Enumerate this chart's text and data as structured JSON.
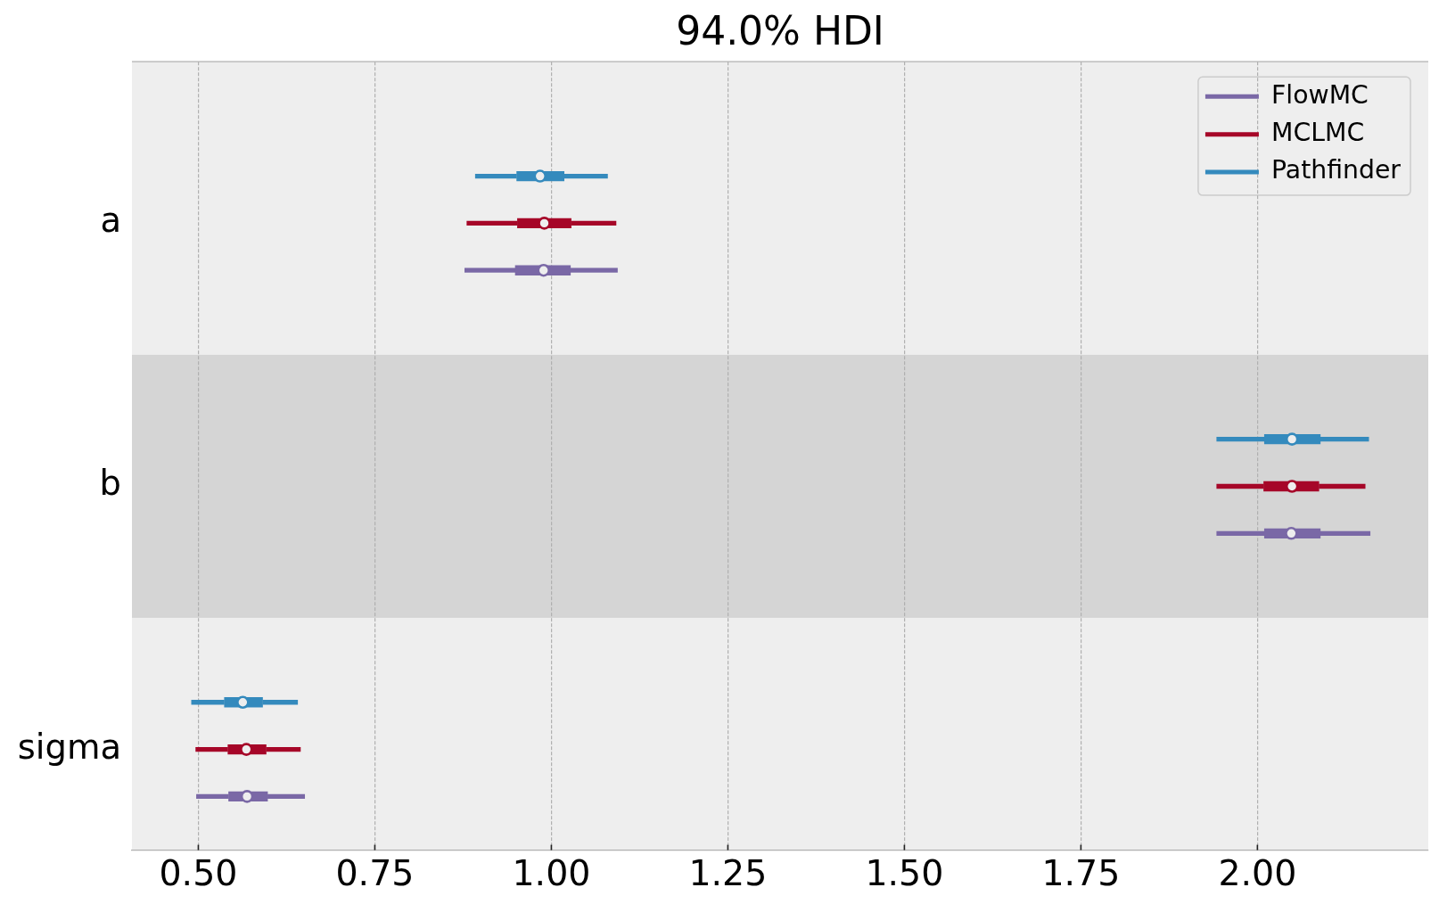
{
  "chart_data": {
    "type": "box",
    "orientation": "horizontal",
    "title": "94.0% HDI",
    "categories": [
      "a",
      "b",
      "sigma"
    ],
    "series": [
      {
        "name": "FlowMC",
        "color": "#7a68a6",
        "boxes": [
          {
            "low": 0.877,
            "q1": 0.949,
            "median": 0.989,
            "q3": 1.027,
            "high": 1.094
          },
          {
            "low": 1.942,
            "q1": 2.01,
            "median": 2.048,
            "q3": 2.089,
            "high": 2.16
          },
          {
            "low": 0.497,
            "q1": 0.543,
            "median": 0.569,
            "q3": 0.598,
            "high": 0.651
          }
        ]
      },
      {
        "name": "MCLMC",
        "color": "#a60628",
        "boxes": [
          {
            "low": 0.88,
            "q1": 0.952,
            "median": 0.99,
            "q3": 1.028,
            "high": 1.092
          },
          {
            "low": 1.942,
            "q1": 2.009,
            "median": 2.049,
            "q3": 2.087,
            "high": 2.153
          },
          {
            "low": 0.496,
            "q1": 0.542,
            "median": 0.568,
            "q3": 0.596,
            "high": 0.645
          }
        ]
      },
      {
        "name": "Pathfinder",
        "color": "#348abd",
        "boxes": [
          {
            "low": 0.892,
            "q1": 0.951,
            "median": 0.984,
            "q3": 1.018,
            "high": 1.08
          },
          {
            "low": 1.942,
            "q1": 2.01,
            "median": 2.049,
            "q3": 2.089,
            "high": 2.158
          },
          {
            "low": 0.49,
            "q1": 0.537,
            "median": 0.563,
            "q3": 0.591,
            "high": 0.641
          }
        ]
      }
    ],
    "xlim": [
      0.406,
      2.242
    ],
    "xticks": [
      {
        "value": 0.5,
        "label": "0.50"
      },
      {
        "value": 0.75,
        "label": "0.75"
      },
      {
        "value": 1.0,
        "label": "1.00"
      },
      {
        "value": 1.25,
        "label": "1.25"
      },
      {
        "value": 1.5,
        "label": "1.50"
      },
      {
        "value": 1.75,
        "label": "1.75"
      },
      {
        "value": 2.0,
        "label": "2.00"
      }
    ],
    "grid": "x",
    "legend": "top right",
    "marker": "circle",
    "bands": [
      {
        "axis": "y",
        "from": "b",
        "to": "b",
        "color": "#d5d5d5"
      }
    ]
  }
}
